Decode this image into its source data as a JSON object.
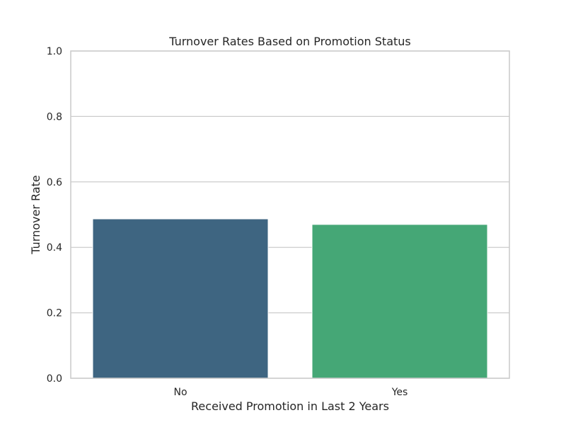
{
  "chart_data": {
    "type": "bar",
    "title": "Turnover Rates Based on Promotion Status",
    "xlabel": "Received Promotion in Last 2 Years",
    "ylabel": "Turnover Rate",
    "categories": [
      "No",
      "Yes"
    ],
    "values": [
      0.487,
      0.47
    ],
    "colors": [
      "#3e6581",
      "#45a776"
    ],
    "ylim": [
      0,
      1.0
    ],
    "yticks": [
      0.0,
      0.2,
      0.4,
      0.6,
      0.8,
      1.0
    ],
    "ytick_labels": [
      "0.0",
      "0.2",
      "0.4",
      "0.6",
      "0.8",
      "1.0"
    ],
    "grid": true,
    "grid_axis": "y",
    "legend": "none"
  }
}
